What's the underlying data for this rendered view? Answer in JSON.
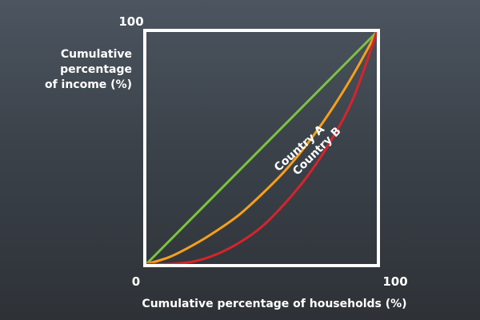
{
  "chart_data": {
    "type": "line",
    "title": "",
    "xlabel": "Cumulative percentage of households (%)",
    "ylabel_lines": [
      "Cumulative",
      "percentage",
      "of income (%)"
    ],
    "xlim": [
      0,
      100
    ],
    "ylim": [
      0,
      100
    ],
    "x_ticks": [
      "0",
      "100"
    ],
    "y_ticks": [
      "100"
    ],
    "grid": false,
    "legend": "none (inline labels)",
    "series": [
      {
        "id": "equality",
        "color": "#7cc242",
        "x": [
          0,
          100
        ],
        "y": [
          0,
          100
        ]
      },
      {
        "name": "Country A",
        "color": "#f5a01a",
        "x": [
          0,
          10,
          20,
          30,
          40,
          50,
          60,
          70,
          80,
          90,
          100
        ],
        "y": [
          0,
          3,
          8,
          14,
          21,
          30,
          40,
          52,
          66,
          82,
          100
        ]
      },
      {
        "name": "Country B",
        "color": "#d8232a",
        "x": [
          0,
          10,
          20,
          30,
          40,
          50,
          60,
          70,
          80,
          90,
          100
        ],
        "y": [
          0,
          0,
          1,
          4,
          9,
          16,
          26,
          38,
          53,
          72,
          100
        ]
      }
    ]
  }
}
